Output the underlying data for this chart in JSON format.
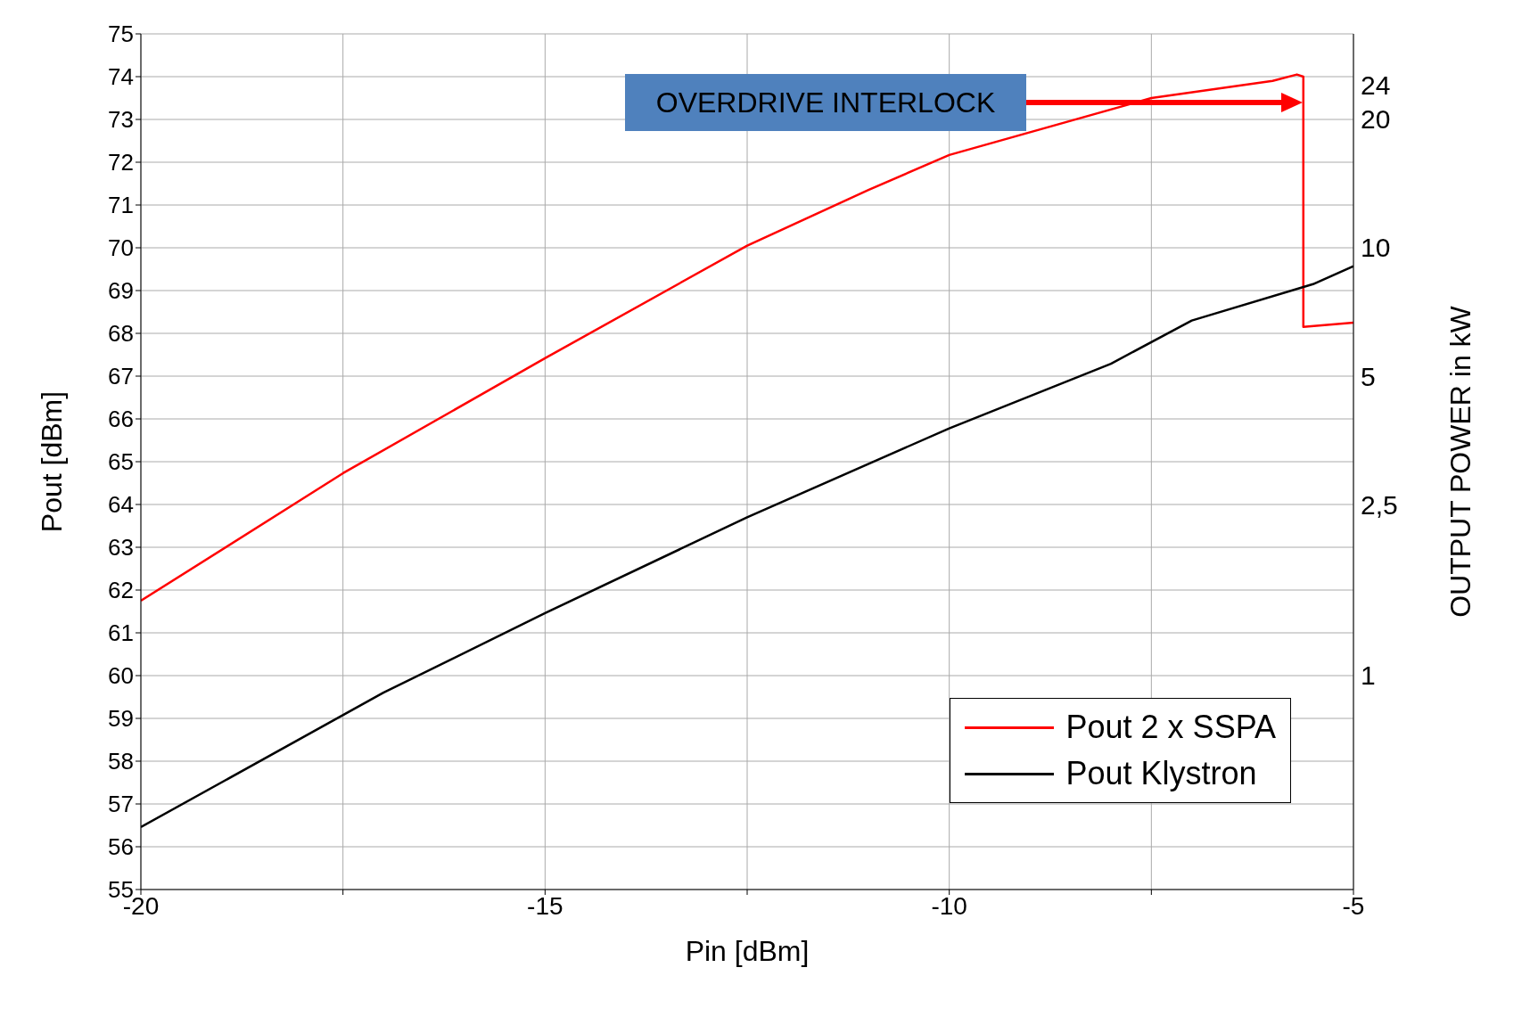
{
  "chart_data": {
    "type": "line",
    "xlabel": "Pin [dBm]",
    "ylabel": "Pout [dBm]",
    "y2label": "OUTPUT POWER  in kW",
    "xlim": [
      -20,
      -5
    ],
    "xticks": [
      -20,
      {
        "value": -17.5,
        "label": null
      },
      -15,
      {
        "value": -12.5,
        "label": null
      },
      -10,
      {
        "value": -7.5,
        "label": null
      },
      -5
    ],
    "ylim": [
      55,
      75
    ],
    "yticks": [
      55,
      56,
      57,
      58,
      59,
      60,
      61,
      62,
      63,
      64,
      65,
      66,
      67,
      68,
      69,
      70,
      71,
      72,
      73,
      74,
      75
    ],
    "y2lim": [
      0.316,
      31.6
    ],
    "y2ticks": [
      1,
      {
        "value": 2.5,
        "label": "2,5"
      },
      5,
      10,
      20,
      24
    ],
    "log": "y2",
    "grid": true,
    "legend": "bottom right",
    "marker": "none",
    "line_style": "solid",
    "annotations": [
      "OVERDRIVE INTERLOCK"
    ],
    "series": [
      {
        "name": "Pout 2 x SSPA",
        "color": "#ff0000",
        "x": [
          -20,
          -17.5,
          -15,
          -12.5,
          -11,
          -10,
          -7.5,
          -6,
          -5.7,
          -5.62,
          -5.62,
          -5
        ],
        "values": [
          61.75,
          64.73,
          67.42,
          70.05,
          71.35,
          72.17,
          73.5,
          73.9,
          74.05,
          74.0,
          68.15,
          68.25
        ]
      },
      {
        "name": "Pout Klystron",
        "color": "#000000",
        "x": [
          -20,
          -17,
          -15,
          -12.5,
          -10,
          -8,
          -7,
          -5.5,
          -5
        ],
        "values": [
          56.46,
          59.6,
          61.46,
          63.7,
          65.78,
          67.29,
          68.3,
          69.15,
          69.57
        ]
      }
    ]
  }
}
